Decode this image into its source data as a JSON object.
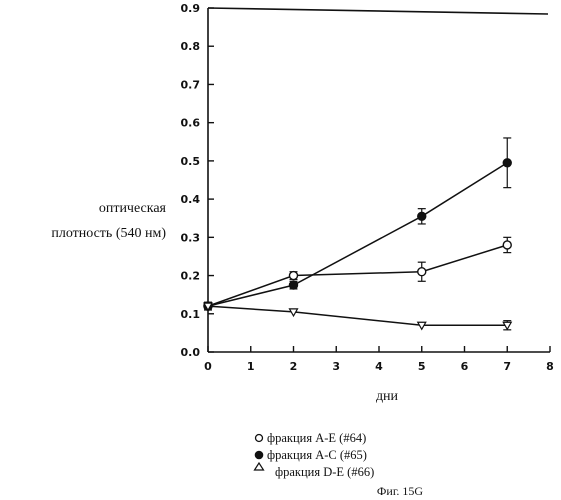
{
  "chart_data": {
    "type": "line",
    "title": "",
    "xlabel": "дни",
    "ylabel_line1": "оптическая",
    "ylabel_line2": "плотность (540 нм)",
    "xlim": [
      0,
      8
    ],
    "ylim": [
      0,
      0.9
    ],
    "x_ticks": [
      "0",
      "1",
      "2",
      "3",
      "4",
      "5",
      "6",
      "7",
      "8"
    ],
    "y_ticks": [
      "0.0",
      "0.1",
      "0.2",
      "0.3",
      "0.4",
      "0.5",
      "0.6",
      "0.7",
      "0.8",
      "0.9"
    ],
    "grid": false,
    "series": [
      {
        "name": "фракция A-E (#64)",
        "marker": "open-circle",
        "x": [
          0,
          2,
          5,
          7
        ],
        "y": [
          0.12,
          0.2,
          0.21,
          0.28
        ],
        "err": [
          0.01,
          0.01,
          0.025,
          0.02
        ]
      },
      {
        "name": "фракция A-C (#65)",
        "marker": "filled-circle",
        "x": [
          0,
          2,
          5,
          7
        ],
        "y": [
          0.12,
          0.175,
          0.355,
          0.495
        ],
        "err": [
          0.01,
          0.01,
          0.02,
          0.065
        ]
      },
      {
        "name": "фракция D-E (#66)",
        "marker": "open-triangle-down",
        "x": [
          0,
          2,
          5,
          7
        ],
        "y": [
          0.12,
          0.105,
          0.07,
          0.07
        ],
        "err": [
          0.0,
          0.0,
          0.0,
          0.012
        ]
      }
    ],
    "legend_placement": "bottom-center",
    "caption": "Фиг. 15G"
  }
}
